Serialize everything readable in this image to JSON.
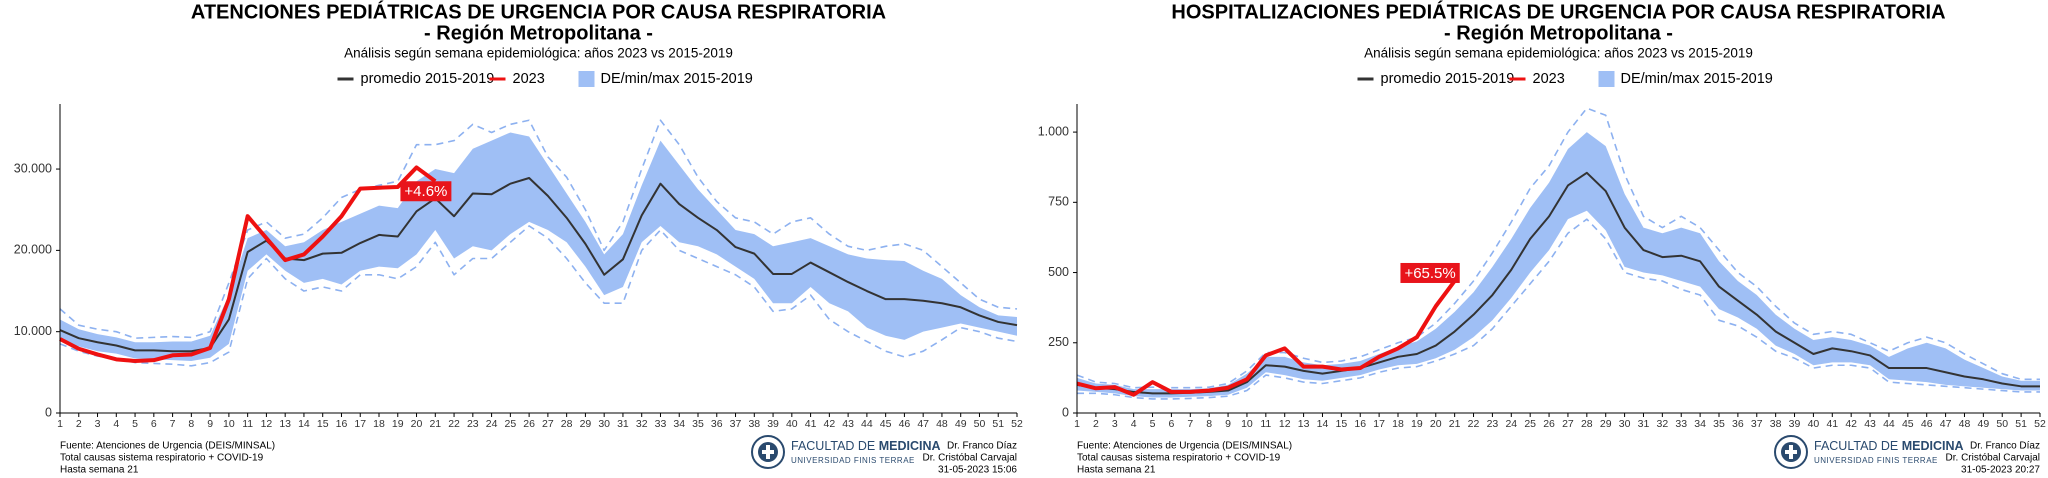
{
  "chart_data": [
    {
      "type": "line",
      "title": "ATENCIONES PEDIÁTRICAS DE URGENCIA POR CAUSA RESPIRATORIA",
      "subtitle": "- Región Metropolitana -",
      "description": "Análisis según semana epidemiológica: años 2023 vs 2015-2019",
      "x": [
        1,
        2,
        3,
        4,
        5,
        6,
        7,
        8,
        9,
        10,
        11,
        12,
        13,
        14,
        15,
        16,
        17,
        18,
        19,
        20,
        21,
        22,
        23,
        24,
        25,
        26,
        27,
        28,
        29,
        30,
        31,
        32,
        33,
        34,
        35,
        36,
        37,
        38,
        39,
        40,
        41,
        42,
        43,
        44,
        45,
        46,
        47,
        48,
        49,
        50,
        51,
        52
      ],
      "xlim": [
        1,
        52
      ],
      "xticks": [
        1,
        2,
        3,
        4,
        5,
        6,
        7,
        8,
        9,
        10,
        11,
        12,
        13,
        14,
        15,
        16,
        17,
        18,
        19,
        20,
        21,
        22,
        23,
        24,
        25,
        26,
        27,
        28,
        29,
        30,
        31,
        32,
        33,
        34,
        35,
        36,
        37,
        38,
        39,
        40,
        41,
        42,
        43,
        44,
        45,
        46,
        47,
        48,
        49,
        50,
        51,
        52
      ],
      "ylim": [
        0,
        38000
      ],
      "yticks": [
        0,
        {
          "value": 10000,
          "label": "10.000"
        },
        {
          "value": 20000,
          "label": "20.000"
        },
        {
          "value": 30000,
          "label": "30.000"
        }
      ],
      "band": {
        "name": "DE/min/max 2015-2019",
        "color": "#9fbff5",
        "dash_color": "#8db1f0",
        "upper": [
          11500,
          10300,
          9700,
          9300,
          8700,
          8700,
          8800,
          8800,
          9500,
          14500,
          21500,
          22500,
          20500,
          21000,
          22500,
          23500,
          24500,
          25500,
          25200,
          28500,
          30000,
          29500,
          32500,
          33500,
          34500,
          34000,
          30500,
          27000,
          23500,
          19500,
          22000,
          28000,
          33500,
          30500,
          27500,
          25000,
          22500,
          22000,
          20500,
          21000,
          21500,
          20500,
          19500,
          19000,
          18800,
          18700,
          17500,
          16500,
          14500,
          13000,
          12000,
          11800
        ],
        "lower": [
          9000,
          8200,
          7600,
          7300,
          6700,
          6600,
          6500,
          6400,
          6800,
          8500,
          17500,
          19500,
          17500,
          16000,
          16500,
          15800,
          17500,
          18000,
          17800,
          19500,
          22500,
          19000,
          20500,
          20000,
          22000,
          23500,
          22500,
          21000,
          18000,
          14500,
          15500,
          21000,
          23000,
          21000,
          20500,
          19500,
          18000,
          16500,
          13500,
          13500,
          15500,
          13500,
          12500,
          10500,
          9500,
          9000,
          10000,
          10500,
          11000,
          10500,
          10000,
          9500
        ],
        "max": [
          12800,
          10800,
          10300,
          10000,
          9200,
          9300,
          9400,
          9300,
          10000,
          16000,
          22500,
          23500,
          21500,
          22000,
          24000,
          26500,
          27500,
          28000,
          28500,
          33000,
          33000,
          33500,
          35500,
          34500,
          35500,
          36000,
          31500,
          29000,
          25000,
          20000,
          23500,
          30000,
          36000,
          33000,
          29000,
          26000,
          24000,
          23500,
          22000,
          23500,
          24000,
          22000,
          20500,
          20000,
          20500,
          20800,
          20000,
          18000,
          16000,
          14000,
          13000,
          12800
        ],
        "min": [
          8500,
          7600,
          7000,
          6700,
          6200,
          6100,
          6000,
          5800,
          6200,
          7500,
          16500,
          19000,
          16500,
          15000,
          15500,
          15000,
          17000,
          17000,
          16500,
          18000,
          21000,
          17000,
          19000,
          19000,
          21000,
          23000,
          21500,
          19000,
          16000,
          13500,
          13500,
          20000,
          22500,
          20000,
          19000,
          18000,
          17000,
          15500,
          12500,
          12800,
          14500,
          11500,
          10000,
          8800,
          7600,
          6900,
          7600,
          9000,
          10500,
          10000,
          9200,
          8800
        ]
      },
      "series": [
        {
          "name": "promedio 2015-2019",
          "color": "#333333",
          "values": [
            10200,
            9200,
            8700,
            8300,
            7700,
            7700,
            7600,
            7600,
            8000,
            11500,
            19800,
            21200,
            19000,
            18800,
            19600,
            19700,
            20900,
            21900,
            21700,
            24800,
            26400,
            24200,
            27000,
            26900,
            28200,
            28900,
            26700,
            24000,
            20800,
            17000,
            18900,
            24300,
            28200,
            25700,
            24000,
            22500,
            20400,
            19600,
            17100,
            17100,
            18500,
            17300,
            16100,
            15000,
            14000,
            14000,
            13800,
            13500,
            13000,
            12000,
            11200,
            10800
          ]
        },
        {
          "name": "2023",
          "color": "#ee1111",
          "values": [
            9100,
            7900,
            7200,
            6600,
            6400,
            6500,
            7100,
            7200,
            8000,
            14000,
            24200,
            21500,
            18800,
            19500,
            21700,
            24200,
            27600,
            27700,
            27800,
            30200,
            28500,
            null,
            null,
            null,
            null,
            null,
            null,
            null,
            null,
            null,
            null,
            null,
            null,
            null,
            null,
            null,
            null,
            null,
            null,
            null,
            null,
            null,
            null,
            null,
            null,
            null,
            null,
            null,
            null,
            null,
            null,
            null
          ]
        }
      ],
      "annotation": "+4.6%",
      "source": [
        "Fuente: Atenciones de Urgencia (DEIS/MINSAL)",
        "Total causas sistema respiratorio + COVID-19",
        "Hasta semana 21"
      ],
      "authors": [
        "Dr. Franco Díaz",
        "Dr. Cristóbal Carvajal",
        "31-05-2023 15:06"
      ]
    },
    {
      "type": "line",
      "title": "HOSPITALIZACIONES PEDIÁTRICAS DE URGENCIA POR CAUSA RESPIRATORIA",
      "subtitle": "- Región Metropolitana -",
      "description": "Análisis según semana epidemiológica: años 2023 vs 2015-2019",
      "x": [
        1,
        2,
        3,
        4,
        5,
        6,
        7,
        8,
        9,
        10,
        11,
        12,
        13,
        14,
        15,
        16,
        17,
        18,
        19,
        20,
        21,
        22,
        23,
        24,
        25,
        26,
        27,
        28,
        29,
        30,
        31,
        32,
        33,
        34,
        35,
        36,
        37,
        38,
        39,
        40,
        41,
        42,
        43,
        44,
        45,
        46,
        47,
        48,
        49,
        50,
        51,
        52
      ],
      "xlim": [
        1,
        52
      ],
      "xticks": [
        1,
        2,
        3,
        4,
        5,
        6,
        7,
        8,
        9,
        10,
        11,
        12,
        13,
        14,
        15,
        16,
        17,
        18,
        19,
        20,
        21,
        22,
        23,
        24,
        25,
        26,
        27,
        28,
        29,
        30,
        31,
        32,
        33,
        34,
        35,
        36,
        37,
        38,
        39,
        40,
        41,
        42,
        43,
        44,
        45,
        46,
        47,
        48,
        49,
        50,
        51,
        52
      ],
      "ylim": [
        0,
        1100
      ],
      "yticks": [
        0,
        250,
        500,
        750,
        {
          "value": 1000,
          "label": "1.000"
        }
      ],
      "band": {
        "name": "DE/min/max 2015-2019",
        "color": "#9fbff5",
        "dash_color": "#8db1f0",
        "upper": [
          125,
          105,
          100,
          85,
          85,
          85,
          85,
          88,
          100,
          140,
          200,
          200,
          180,
          170,
          175,
          185,
          210,
          235,
          255,
          300,
          360,
          430,
          520,
          620,
          730,
          820,
          940,
          1000,
          950,
          780,
          660,
          640,
          660,
          640,
          540,
          470,
          420,
          350,
          300,
          260,
          270,
          260,
          240,
          200,
          230,
          250,
          230,
          190,
          160,
          130,
          115,
          115
        ],
        "lower": [
          80,
          75,
          70,
          60,
          55,
          55,
          58,
          60,
          65,
          90,
          145,
          135,
          120,
          115,
          125,
          135,
          155,
          170,
          175,
          195,
          225,
          270,
          330,
          410,
          500,
          580,
          690,
          720,
          650,
          520,
          500,
          490,
          470,
          450,
          370,
          340,
          300,
          240,
          210,
          170,
          180,
          180,
          170,
          120,
          115,
          110,
          100,
          95,
          90,
          85,
          80,
          80
        ],
        "max": [
          135,
          110,
          105,
          90,
          92,
          90,
          90,
          92,
          105,
          150,
          215,
          215,
          195,
          180,
          185,
          200,
          225,
          250,
          270,
          320,
          390,
          470,
          570,
          680,
          800,
          880,
          1000,
          1085,
          1060,
          850,
          700,
          660,
          700,
          660,
          580,
          500,
          450,
          380,
          320,
          280,
          290,
          280,
          250,
          220,
          250,
          270,
          250,
          210,
          175,
          140,
          120,
          120
        ],
        "min": [
          70,
          70,
          65,
          55,
          50,
          50,
          52,
          55,
          60,
          80,
          135,
          125,
          110,
          105,
          115,
          125,
          145,
          160,
          165,
          185,
          210,
          240,
          300,
          380,
          460,
          540,
          640,
          690,
          620,
          500,
          480,
          470,
          440,
          420,
          330,
          310,
          270,
          220,
          195,
          160,
          170,
          170,
          160,
          110,
          105,
          100,
          95,
          90,
          85,
          80,
          75,
          75
        ]
      },
      "series": [
        {
          "name": "promedio 2015-2019",
          "color": "#333333",
          "values": [
            100,
            90,
            85,
            75,
            70,
            70,
            72,
            75,
            80,
            110,
            170,
            165,
            150,
            140,
            150,
            160,
            180,
            200,
            210,
            240,
            290,
            350,
            420,
            510,
            620,
            700,
            810,
            855,
            790,
            660,
            580,
            555,
            560,
            540,
            450,
            400,
            350,
            290,
            250,
            210,
            230,
            220,
            205,
            160,
            160,
            160,
            145,
            130,
            120,
            105,
            95,
            95
          ]
        },
        {
          "name": "2023",
          "color": "#ee1111",
          "values": [
            105,
            88,
            92,
            65,
            110,
            75,
            75,
            80,
            90,
            120,
            205,
            230,
            165,
            165,
            155,
            160,
            200,
            230,
            270,
            380,
            470,
            null,
            null,
            null,
            null,
            null,
            null,
            null,
            null,
            null,
            null,
            null,
            null,
            null,
            null,
            null,
            null,
            null,
            null,
            null,
            null,
            null,
            null,
            null,
            null,
            null,
            null,
            null,
            null,
            null,
            null,
            null
          ]
        }
      ],
      "annotation": "+65.5%",
      "source": [
        "Fuente: Atenciones de Urgencia (DEIS/MINSAL)",
        "Total causas sistema respiratorio + COVID-19",
        "Hasta semana 21"
      ],
      "authors": [
        "Dr. Franco Díaz",
        "Dr. Cristóbal Carvajal",
        "31-05-2023 20:27"
      ]
    }
  ],
  "logo": {
    "name": [
      "FACULTAD DE",
      "MEDICINA"
    ],
    "university": "UNIVERSIDAD FINIS TERRAE"
  }
}
